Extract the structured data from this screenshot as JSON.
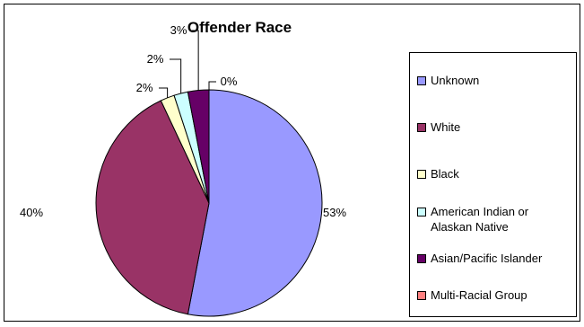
{
  "chart_data": {
    "type": "pie",
    "title": "Offender Race",
    "categories": [
      "Unknown",
      "White",
      "Black",
      "American Indian or\nAlaskan Native",
      "Asian/Pacific Islander",
      "Multi-Racial Group"
    ],
    "values": [
      53,
      40,
      2,
      2,
      3,
      0
    ],
    "data_labels": [
      "53%",
      "40%",
      "2%",
      "2%",
      "3%",
      "0%"
    ],
    "colors": [
      "#9999FF",
      "#993366",
      "#FFFFCC",
      "#CCFFFF",
      "#660066",
      "#FF8080"
    ],
    "legend": "right"
  }
}
